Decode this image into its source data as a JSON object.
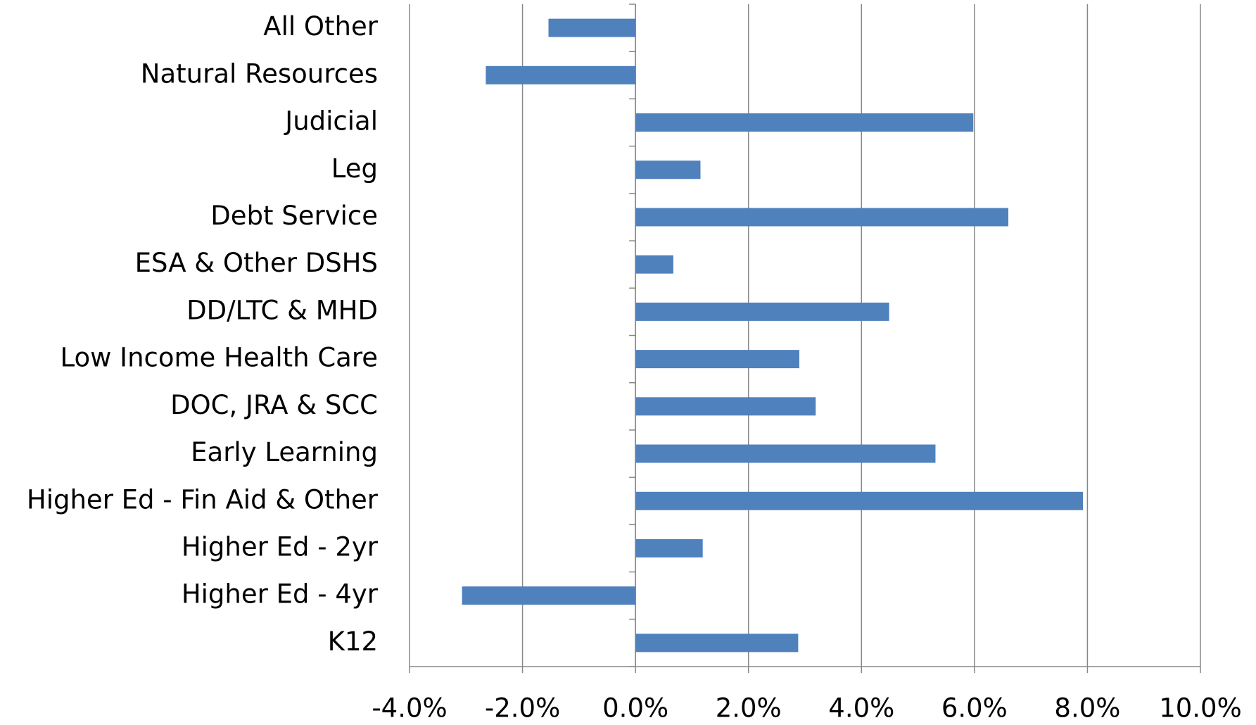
{
  "chart_data": {
    "type": "hbar",
    "categories": [
      "All Other",
      "Natural Resources",
      "Judicial",
      "Leg",
      "Debt Service",
      "ESA & Other DSHS",
      "DD/LTC & MHD",
      "Low Income Health Care",
      "DOC, JRA & SCC",
      "Early Learning",
      "Higher Ed - Fin Aid & Other",
      "Higher Ed - 2yr",
      "Higher Ed - 4yr",
      "K12"
    ],
    "values": [
      -1.54,
      -2.65,
      5.98,
      1.15,
      6.6,
      0.67,
      4.49,
      2.9,
      3.19,
      5.31,
      7.92,
      1.19,
      -3.07,
      2.88
    ],
    "color": "#4f81bd",
    "xlim": [
      -4,
      10
    ],
    "xticks": [
      {
        "value": -4,
        "label": "-4.0%"
      },
      {
        "value": -2,
        "label": "-2.0%"
      },
      {
        "value": 0,
        "label": "0.0%"
      },
      {
        "value": 2,
        "label": "2.0%"
      },
      {
        "value": 4,
        "label": "4.0%"
      },
      {
        "value": 6,
        "label": "6.0%"
      },
      {
        "value": 8,
        "label": "8.0%"
      },
      {
        "value": 10,
        "label": "10.0%"
      }
    ],
    "grid": true
  }
}
